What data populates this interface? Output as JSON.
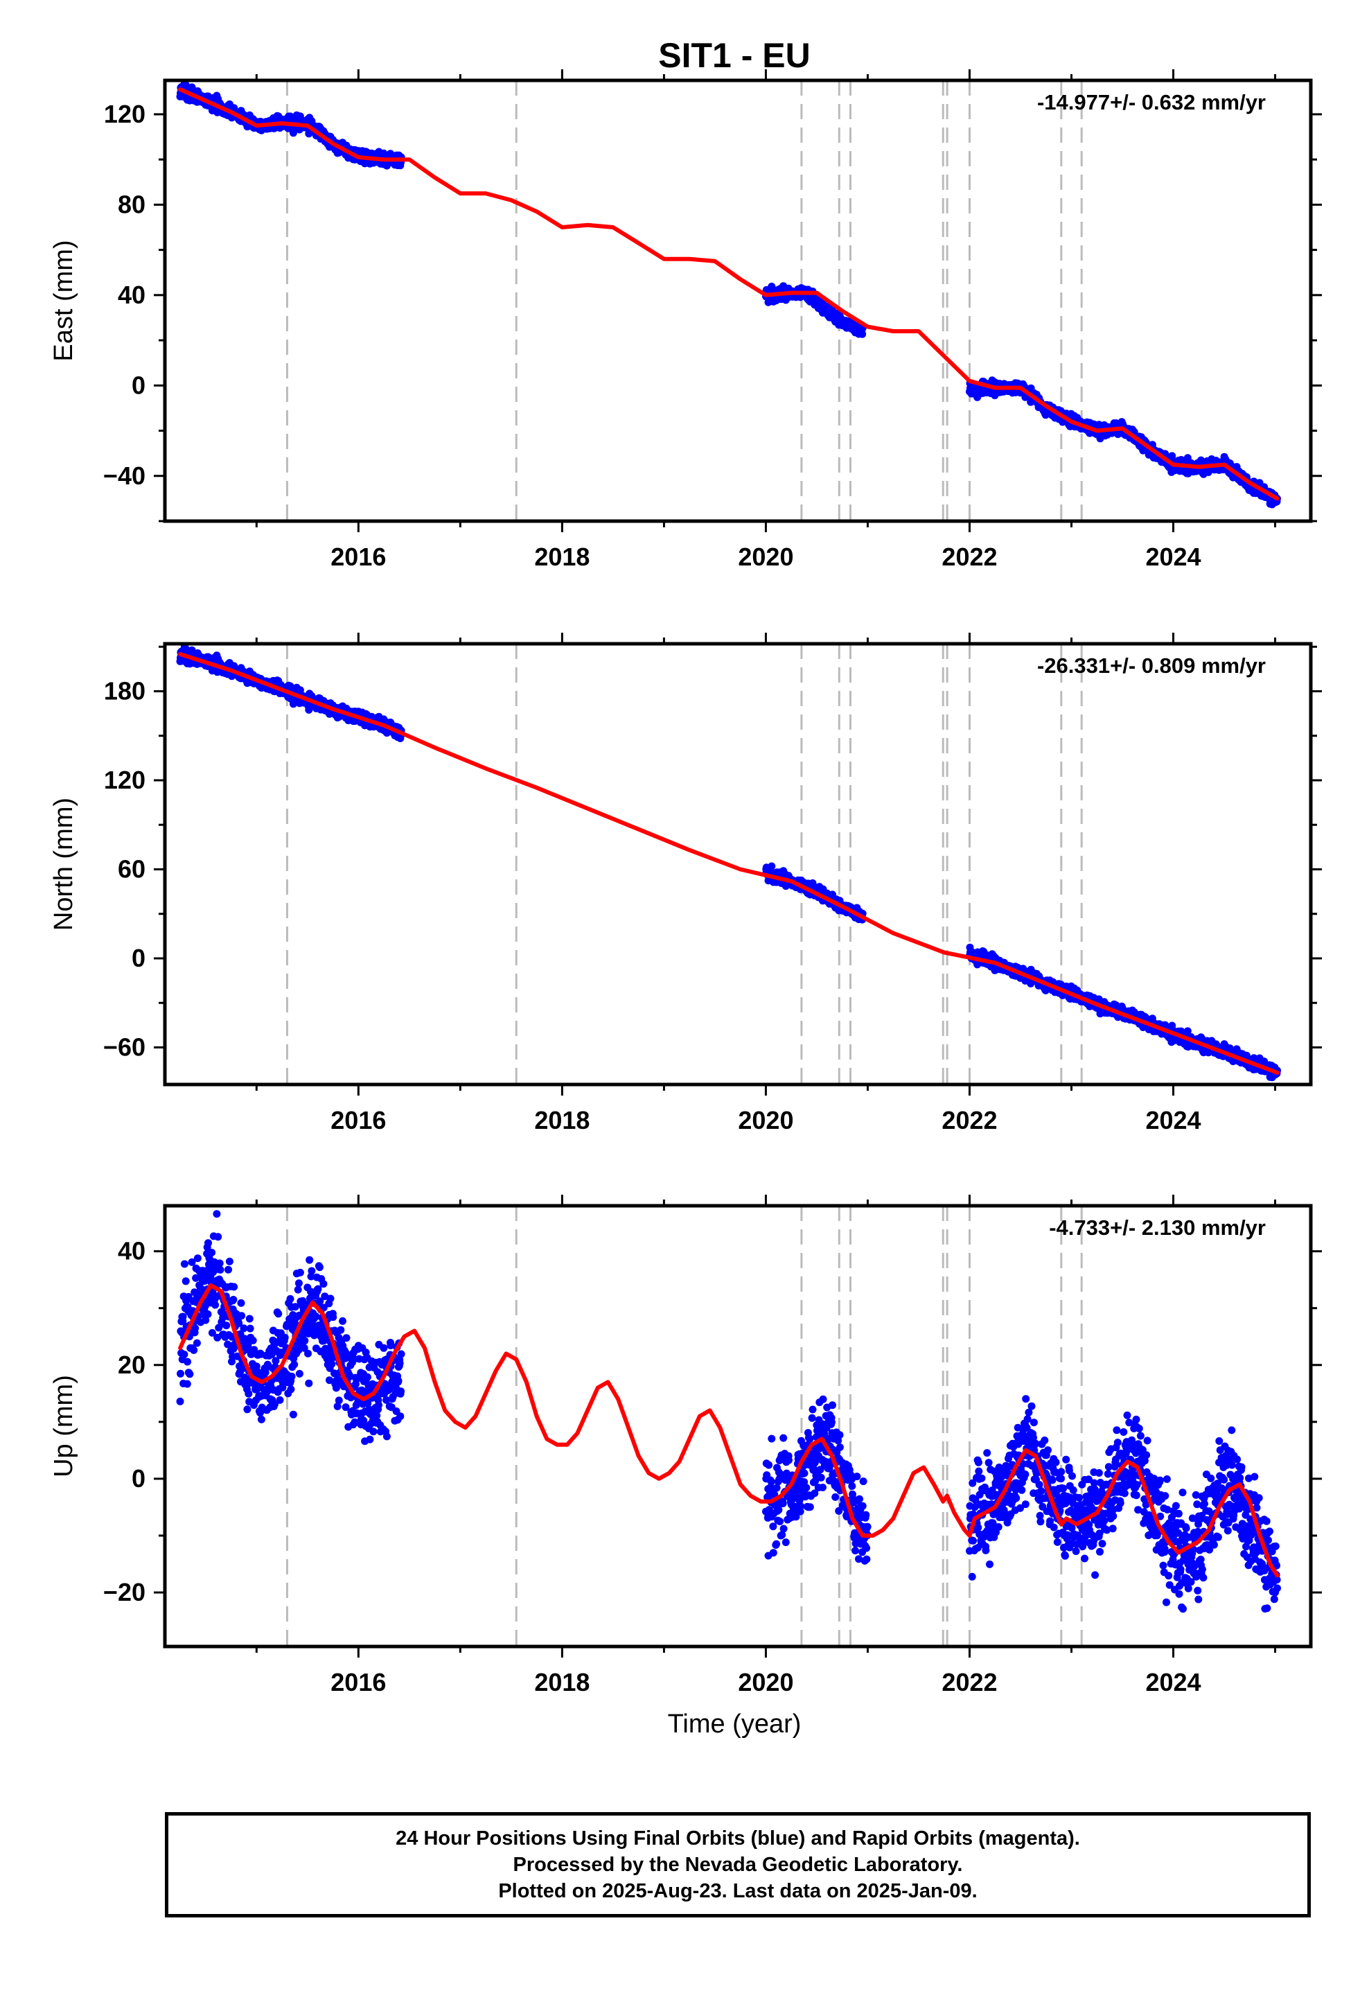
{
  "title": "SIT1 - EU",
  "xlabel": "Time (year)",
  "colors": {
    "points": "#0000ff",
    "fit": "#ff0000",
    "offsets": "#bbbbbb",
    "axes": "#000000"
  },
  "chart_data": [
    {
      "type": "scatter",
      "ylabel": "East (mm)",
      "rate_annotation": "-14.977+/- 0.632 mm/yr",
      "xlim": [
        2014.1,
        2025.35
      ],
      "ylim": [
        -60,
        135
      ],
      "xticks": [
        2016,
        2018,
        2020,
        2022,
        2024
      ],
      "xtick_labels": [
        "2016",
        "2018",
        "2020",
        "2022",
        "2024"
      ],
      "yticks": [
        -40,
        0,
        40,
        80,
        120
      ],
      "ytick_labels": [
        "−40",
        "0",
        "40",
        "80",
        "120"
      ],
      "offset_lines": [
        2015.3,
        2017.55,
        2020.35,
        2020.72,
        2020.83,
        2021.74,
        2021.78,
        2022.0,
        2022.9,
        2023.1
      ],
      "series": [
        {
          "kind": "points",
          "segments": [
            {
              "x": [
                2014.25,
                2014.5,
                2014.75,
                2015.0,
                2015.25,
                2015.5,
                2015.75,
                2016.0,
                2016.25,
                2016.42
              ],
              "y": [
                131,
                126,
                121,
                115,
                116,
                116,
                107,
                101,
                100,
                100
              ]
            },
            {
              "x": [
                2020.0,
                2020.25,
                2020.4,
                2020.6,
                2020.8,
                2020.95
              ],
              "y": [
                40,
                41,
                41,
                33,
                27,
                24
              ]
            },
            {
              "x": [
                2022.0,
                2022.25,
                2022.5,
                2022.75,
                2023.0,
                2023.25,
                2023.5,
                2023.75,
                2024.0,
                2024.25,
                2024.5,
                2024.75,
                2025.02
              ],
              "y": [
                -2,
                -1,
                -1,
                -10,
                -16,
                -20,
                -19,
                -28,
                -35,
                -36,
                -35,
                -44,
                -51
              ]
            }
          ]
        },
        {
          "kind": "fit",
          "x": [
            2014.25,
            2014.5,
            2014.75,
            2015.0,
            2015.25,
            2015.5,
            2015.75,
            2016.0,
            2016.25,
            2016.5,
            2016.75,
            2017.0,
            2017.25,
            2017.5,
            2017.75,
            2018.0,
            2018.25,
            2018.5,
            2018.75,
            2019.0,
            2019.25,
            2019.5,
            2019.75,
            2020.0,
            2020.25,
            2020.5,
            2020.75,
            2021.0,
            2021.25,
            2021.5,
            2021.75,
            2022.0,
            2022.25,
            2022.5,
            2022.75,
            2023.0,
            2023.25,
            2023.5,
            2023.75,
            2024.0,
            2024.25,
            2024.5,
            2024.75,
            2025.02
          ],
          "y": [
            131,
            126,
            121,
            115,
            116,
            115,
            107,
            101,
            100,
            100,
            92,
            85,
            85,
            82,
            77,
            70,
            71,
            70,
            63,
            56,
            56,
            55,
            47,
            40,
            41,
            41,
            33,
            26,
            24,
            24,
            13,
            2,
            -1,
            -1,
            -9,
            -16,
            -20,
            -19,
            -27,
            -35,
            -36,
            -35,
            -43,
            -50
          ]
        }
      ]
    },
    {
      "type": "scatter",
      "ylabel": "North (mm)",
      "rate_annotation": "-26.331+/- 0.809 mm/yr",
      "xlim": [
        2014.1,
        2025.35
      ],
      "ylim": [
        -85,
        212
      ],
      "xticks": [
        2016,
        2018,
        2020,
        2022,
        2024
      ],
      "xtick_labels": [
        "2016",
        "2018",
        "2020",
        "2022",
        "2024"
      ],
      "yticks": [
        -60,
        0,
        60,
        120,
        180
      ],
      "ytick_labels": [
        "−60",
        "0",
        "60",
        "120",
        "180"
      ],
      "offset_lines": [
        2015.3,
        2017.55,
        2020.35,
        2020.72,
        2020.83,
        2021.74,
        2021.78,
        2022.0,
        2022.9,
        2023.1
      ],
      "series": [
        {
          "kind": "points",
          "segments": [
            {
              "x": [
                2014.25,
                2014.5,
                2014.75,
                2015.0,
                2015.25,
                2015.5,
                2015.75,
                2016.0,
                2016.25,
                2016.42
              ],
              "y": [
                205,
                200,
                194,
                187,
                181,
                174,
                168,
                162,
                157,
                152
              ]
            },
            {
              "x": [
                2020.0,
                2020.25,
                2020.5,
                2020.75,
                2020.95
              ],
              "y": [
                58,
                52,
                45,
                35,
                28
              ]
            },
            {
              "x": [
                2022.0,
                2022.25,
                2022.5,
                2022.75,
                2023.0,
                2023.25,
                2023.5,
                2023.75,
                2024.0,
                2024.25,
                2024.5,
                2024.75,
                2025.02
              ],
              "y": [
                3,
                -3,
                -10,
                -17,
                -24,
                -31,
                -37,
                -44,
                -51,
                -57,
                -63,
                -70,
                -77
              ]
            }
          ]
        },
        {
          "kind": "fit",
          "x": [
            2014.25,
            2014.75,
            2015.25,
            2015.75,
            2016.25,
            2016.75,
            2017.25,
            2017.75,
            2018.25,
            2018.75,
            2019.25,
            2019.75,
            2020.25,
            2020.75,
            2021.25,
            2021.75,
            2022.25,
            2022.75,
            2023.25,
            2023.75,
            2024.25,
            2024.75,
            2025.02
          ],
          "y": [
            205,
            194,
            181,
            168,
            157,
            142,
            128,
            115,
            101,
            87,
            73,
            60,
            52,
            35,
            17,
            4,
            -3,
            -17,
            -31,
            -44,
            -57,
            -70,
            -77
          ]
        }
      ]
    },
    {
      "type": "scatter",
      "ylabel": "Up (mm)",
      "rate_annotation": "-4.733+/- 2.130 mm/yr",
      "xlim": [
        2014.1,
        2025.35
      ],
      "ylim": [
        -29.5,
        48
      ],
      "xticks": [
        2016,
        2018,
        2020,
        2022,
        2024
      ],
      "xtick_labels": [
        "2016",
        "2018",
        "2020",
        "2022",
        "2024"
      ],
      "yticks": [
        -20,
        0,
        20,
        40
      ],
      "ytick_labels": [
        "−20",
        "0",
        "20",
        "40"
      ],
      "offset_lines": [
        2015.3,
        2017.55,
        2020.35,
        2020.72,
        2020.83,
        2021.74,
        2021.78,
        2022.0,
        2022.9,
        2023.1
      ],
      "series": [
        {
          "kind": "points",
          "segments": [
            {
              "x": [
                2014.25,
                2014.4,
                2014.55,
                2014.7,
                2014.85,
                2015.0,
                2015.15,
                2015.3,
                2015.45,
                2015.6,
                2015.75,
                2015.9,
                2016.05,
                2016.2,
                2016.35,
                2016.42
              ],
              "y": [
                23,
                30,
                35,
                31,
                22,
                17,
                18,
                21,
                28,
                30,
                24,
                17,
                14,
                14,
                17,
                19
              ]
            },
            {
              "x": [
                2020.0,
                2020.15,
                2020.3,
                2020.45,
                2020.6,
                2020.75,
                2020.9,
                2021.0
              ],
              "y": [
                -4,
                -3,
                -1,
                3,
                7,
                1,
                -8,
                -10
              ]
            },
            {
              "x": [
                2022.0,
                2022.15,
                2022.3,
                2022.45,
                2022.6,
                2022.75,
                2022.9,
                2023.05,
                2023.2,
                2023.35,
                2023.5,
                2023.65,
                2023.8,
                2023.95,
                2024.1,
                2024.25,
                2024.4,
                2024.55,
                2024.7,
                2024.85,
                2025.02
              ],
              "y": [
                -7,
                -6,
                -3,
                1,
                5,
                0,
                -6,
                -8,
                -7,
                -4,
                2,
                2,
                -5,
                -11,
                -13,
                -11,
                -5,
                -1,
                -6,
                -12,
                -17
              ]
            }
          ]
        },
        {
          "kind": "fit",
          "x": [
            2014.25,
            2014.35,
            2014.45,
            2014.55,
            2014.65,
            2014.75,
            2014.85,
            2014.95,
            2015.05,
            2015.15,
            2015.25,
            2015.35,
            2015.45,
            2015.55,
            2015.65,
            2015.75,
            2015.85,
            2015.95,
            2016.05,
            2016.15,
            2016.25,
            2016.35,
            2016.45,
            2016.55,
            2016.65,
            2016.75,
            2016.85,
            2016.95,
            2017.05,
            2017.15,
            2017.25,
            2017.35,
            2017.45,
            2017.55,
            2017.65,
            2017.75,
            2017.85,
            2017.95,
            2018.05,
            2018.15,
            2018.25,
            2018.35,
            2018.45,
            2018.55,
            2018.65,
            2018.75,
            2018.85,
            2018.95,
            2019.05,
            2019.15,
            2019.25,
            2019.35,
            2019.45,
            2019.55,
            2019.65,
            2019.75,
            2019.85,
            2019.95,
            2020.05,
            2020.15,
            2020.25,
            2020.35,
            2020.45,
            2020.55,
            2020.65,
            2020.75,
            2020.85,
            2020.95,
            2021.05,
            2021.15,
            2021.25,
            2021.35,
            2021.45,
            2021.55,
            2021.65,
            2021.74,
            2021.78,
            2021.85,
            2021.95,
            2022.0,
            2022.05,
            2022.15,
            2022.25,
            2022.35,
            2022.45,
            2022.55,
            2022.65,
            2022.75,
            2022.85,
            2022.9,
            2022.95,
            2023.05,
            2023.15,
            2023.25,
            2023.35,
            2023.45,
            2023.55,
            2023.65,
            2023.75,
            2023.85,
            2023.95,
            2024.05,
            2024.15,
            2024.25,
            2024.35,
            2024.45,
            2024.55,
            2024.65,
            2024.75,
            2024.85,
            2024.95,
            2025.02
          ],
          "y": [
            23,
            27,
            31,
            34,
            33,
            28,
            22,
            18,
            17,
            18,
            20,
            24,
            28,
            31,
            29,
            24,
            18,
            15,
            14,
            15,
            18,
            22,
            25,
            26,
            23,
            17,
            12,
            10,
            9,
            11,
            15,
            19,
            22,
            21,
            17,
            11,
            7,
            6,
            6,
            8,
            12,
            16,
            17,
            14,
            9,
            4,
            1,
            0,
            1,
            3,
            7,
            11,
            12,
            9,
            4,
            -1,
            -3,
            -4,
            -4,
            -3,
            -1,
            3,
            6,
            7,
            4,
            -1,
            -7,
            -10,
            -10,
            -9,
            -7,
            -3,
            1,
            2,
            -1,
            -4,
            -3,
            -6,
            -9,
            -10,
            -7,
            -6,
            -5,
            -2,
            2,
            5,
            4,
            -1,
            -6,
            -8,
            -7,
            -8,
            -7,
            -6,
            -3,
            1,
            3,
            2,
            -3,
            -8,
            -11,
            -13,
            -12,
            -11,
            -9,
            -5,
            -2,
            -1,
            -4,
            -10,
            -15,
            -17
          ]
        }
      ]
    }
  ],
  "footer": {
    "line1": "24 Hour Positions Using Final Orbits (blue) and Rapid Orbits (magenta).",
    "line2": "Processed by the Nevada Geodetic Laboratory.",
    "line3": "Plotted on 2025-Aug-23. Last data on 2025-Jan-09."
  }
}
